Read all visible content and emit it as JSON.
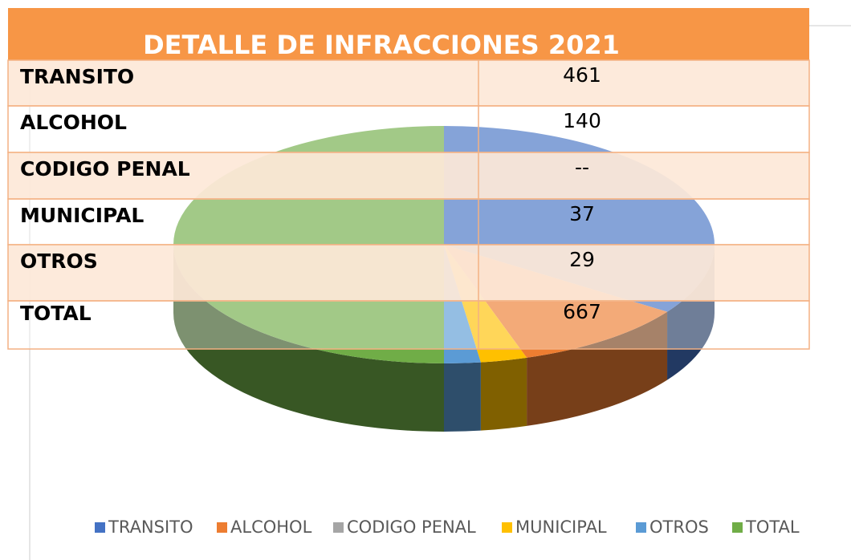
{
  "chart_data": {
    "type": "pie",
    "title": "DETALLE DE INFRACCIONES 2021",
    "categories": [
      "TRANSITO",
      "ALCOHOL",
      "CODIGO PENAL",
      "MUNICIPAL",
      "OTROS",
      "TOTAL"
    ],
    "values": [
      461,
      140,
      null,
      37,
      29,
      667
    ],
    "value_labels": [
      "461",
      "140",
      "--",
      "37",
      "29",
      "667"
    ],
    "colors": [
      "#4472c4",
      "#ed7d31",
      "#a5a5a5",
      "#ffc000",
      "#5b9bd5",
      "#70ad47"
    ],
    "legend": "bottom"
  }
}
